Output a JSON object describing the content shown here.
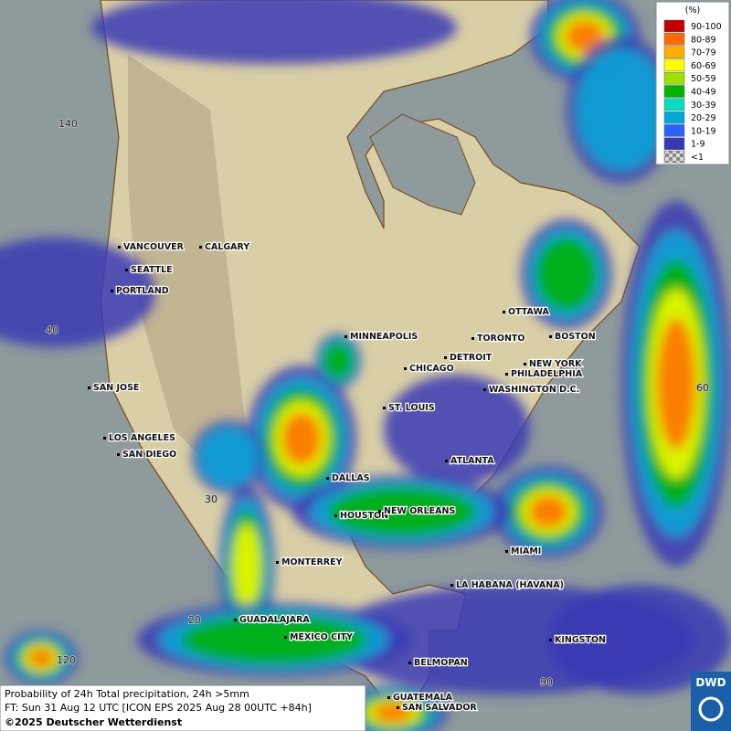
{
  "legend": {
    "title": "(%)",
    "items": [
      {
        "label": "90-100",
        "color": "#c40000"
      },
      {
        "label": "80-89",
        "color": "#ff6a00"
      },
      {
        "label": "70-79",
        "color": "#ffae00"
      },
      {
        "label": "60-69",
        "color": "#ffff00"
      },
      {
        "label": "50-59",
        "color": "#9ee000"
      },
      {
        "label": "40-49",
        "color": "#00b400"
      },
      {
        "label": "30-39",
        "color": "#00e0c0"
      },
      {
        "label": "20-29",
        "color": "#00a8d8"
      },
      {
        "label": "10-19",
        "color": "#2a62ff"
      },
      {
        "label": "1-9",
        "color": "#3838b4"
      },
      {
        "label": "<1",
        "color": "#b0b0b0"
      }
    ]
  },
  "cities": [
    "VANCOUVER",
    "CALGARY",
    "SEATTLE",
    "PORTLAND",
    "MINNEAPOLIS",
    "TORONTO",
    "OTTAWA",
    "BOSTON",
    "NEW YORK",
    "PHILADELPHIA",
    "WASHINGTON D.C.",
    "DETROIT",
    "CHICAGO",
    "ST. LOUIS",
    "SAN JOSE",
    "LOS ANGELES",
    "SAN DIEGO",
    "DALLAS",
    "ATLANTA",
    "HOUSTON",
    "NEW ORLEANS",
    "MIAMI",
    "MONTERREY",
    "LA HABANA (HAVANA)",
    "GUADALAJARA",
    "MEXICO CITY",
    "KINGSTON",
    "BELMOPAN",
    "GUATEMALA",
    "SAN SALVADOR"
  ],
  "grid_labels": [
    "140",
    "40",
    "30",
    "20",
    "120",
    "60",
    "90"
  ],
  "footer": {
    "line1": "Probability of 24h Total precipitation, 24h >5mm",
    "line2": "FT: Sun 31 Aug 12 UTC [ICON EPS 2025 Aug 28 00UTC +84h]",
    "line3": "©2025 Deutscher Wetterdienst"
  },
  "logo": "DWD"
}
